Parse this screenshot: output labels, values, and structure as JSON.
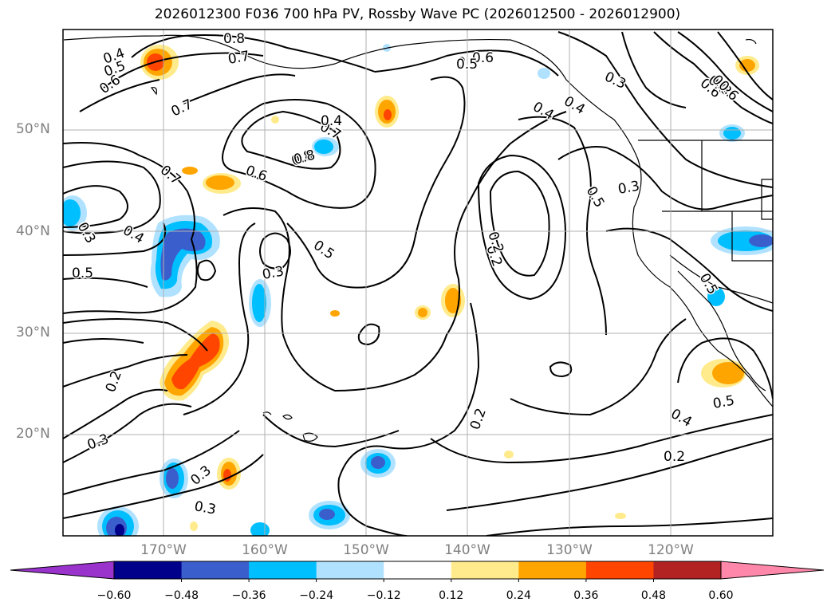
{
  "title": "2026012300 F036 700 hPa PV, Rossby Wave PC (2026012500 - 2026012900)",
  "lat_labels": [
    "50°N",
    "40°N",
    "30°N",
    "20°N"
  ],
  "lon_labels": [
    "170°W",
    "160°W",
    "150°W",
    "140°W",
    "130°W",
    "120°W"
  ],
  "colorbar": {
    "labels": [
      "−0.60",
      "−0.48",
      "−0.36",
      "−0.24",
      "−0.12",
      "0.12",
      "0.24",
      "0.36",
      "0.48",
      "0.60"
    ],
    "colors": [
      "#9933cc",
      "#00008b",
      "#3a5fcd",
      "#00bfff",
      "#b0e2ff",
      "#ffffff",
      "#ffeb8c",
      "#ffa500",
      "#ff4500",
      "#b22222",
      "#ff88aa"
    ]
  },
  "contour_labels": [
    "0.8",
    "0.7",
    "0.4",
    "0.5",
    "0.6",
    "0.7",
    "0.7",
    "0.8",
    "0.6",
    "0.7",
    "0.4",
    "0.5",
    "0.3",
    "0.4",
    "0.3",
    "0.6",
    "0.5",
    "0.8",
    "0.3",
    "0.2",
    "0.5",
    "0.3",
    "0.5",
    "0.6",
    "0.2",
    "0.3",
    "0.2",
    "0.3",
    "0.3",
    "0.4",
    "0.2",
    "0.5",
    "0.4",
    "0.2",
    "0.5",
    "0.6",
    "0.5",
    "0.8",
    "0.6",
    "0.4"
  ]
}
